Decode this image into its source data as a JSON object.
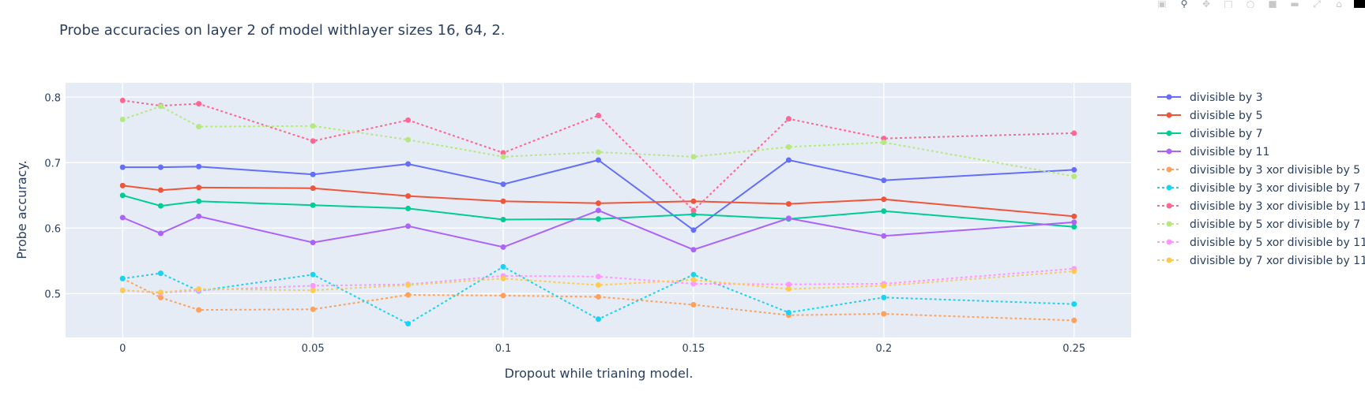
{
  "modebar": {
    "buttons": [
      {
        "icon": "camera-icon",
        "active": false
      },
      {
        "icon": "zoom-icon",
        "active": true
      },
      {
        "icon": "pan-icon",
        "active": false
      },
      {
        "icon": "box-select-icon",
        "active": false
      },
      {
        "icon": "lasso-select-icon",
        "active": false
      },
      {
        "icon": "zoom-in-icon",
        "active": false
      },
      {
        "icon": "zoom-out-icon",
        "active": false
      },
      {
        "icon": "autoscale-icon",
        "active": false
      },
      {
        "icon": "reset-axes-icon",
        "active": false
      },
      {
        "icon": "plotly-logo-icon",
        "active": false
      }
    ]
  },
  "chart_data": {
    "type": "line",
    "title": "Probe accuracies on layer 2 of model withlayer sizes 16, 64, 2.",
    "xlabel": "Dropout while trianing model.",
    "ylabel": "Probe accuracy.",
    "x": [
      0,
      0.01,
      0.02,
      0.05,
      0.075,
      0.1,
      0.125,
      0.15,
      0.175,
      0.2,
      0.25
    ],
    "xlim": [
      -0.015,
      0.265
    ],
    "ylim": [
      0.433,
      0.822
    ],
    "xticks": [
      {
        "v": 0,
        "label": "0"
      },
      {
        "v": 0.05,
        "label": "0.05"
      },
      {
        "v": 0.1,
        "label": "0.1"
      },
      {
        "v": 0.15,
        "label": "0.15"
      },
      {
        "v": 0.2,
        "label": "0.2"
      },
      {
        "v": 0.25,
        "label": "0.25"
      }
    ],
    "yticks": [
      {
        "v": 0.5,
        "label": "0.5"
      },
      {
        "v": 0.6,
        "label": "0.6"
      },
      {
        "v": 0.7,
        "label": "0.7"
      },
      {
        "v": 0.8,
        "label": "0.8"
      }
    ],
    "grid": true,
    "legend_position": "right",
    "series": [
      {
        "name": "divisible by 3",
        "color": "#636efa",
        "dash": "solid",
        "values": [
          0.693,
          0.693,
          0.694,
          0.682,
          0.698,
          0.667,
          0.704,
          0.597,
          0.704,
          0.673,
          0.689
        ]
      },
      {
        "name": "divisible by 5",
        "color": "#ef553b",
        "dash": "solid",
        "values": [
          0.665,
          0.658,
          0.662,
          0.661,
          0.649,
          0.641,
          0.638,
          0.641,
          0.637,
          0.644,
          0.618
        ]
      },
      {
        "name": "divisible by 7",
        "color": "#00cc96",
        "dash": "solid",
        "values": [
          0.65,
          0.634,
          0.641,
          0.635,
          0.63,
          0.613,
          0.614,
          0.621,
          0.614,
          0.626,
          0.602
        ]
      },
      {
        "name": "divisible by 11",
        "color": "#ab63fa",
        "dash": "solid",
        "values": [
          0.616,
          0.592,
          0.618,
          0.578,
          0.603,
          0.571,
          0.627,
          0.567,
          0.615,
          0.588,
          0.609
        ]
      },
      {
        "name": "divisible by 3 xor divisible by 5",
        "color": "#ffa15a",
        "dash": "dot",
        "values": [
          0.523,
          0.494,
          0.475,
          0.476,
          0.498,
          0.497,
          0.495,
          0.483,
          0.467,
          0.469,
          0.459
        ]
      },
      {
        "name": "divisible by 3 xor divisible by 7",
        "color": "#19d3f3",
        "dash": "dot",
        "values": [
          0.523,
          0.531,
          0.504,
          0.529,
          0.454,
          0.541,
          0.461,
          0.529,
          0.471,
          0.494,
          0.484
        ]
      },
      {
        "name": "divisible by 3 xor divisible by 11",
        "color": "#ff6692",
        "dash": "dot",
        "values": [
          0.795,
          0.787,
          0.79,
          0.733,
          0.765,
          0.715,
          0.772,
          0.627,
          0.767,
          0.737,
          0.745
        ]
      },
      {
        "name": "divisible by 5 xor divisible by 7",
        "color": "#b6e880",
        "dash": "dot",
        "values": [
          0.766,
          0.786,
          0.755,
          0.756,
          0.735,
          0.709,
          0.716,
          0.709,
          0.724,
          0.731,
          0.679
        ]
      },
      {
        "name": "divisible by 5 xor divisible by 11",
        "color": "#ff97ff",
        "dash": "dot",
        "values": [
          0.505,
          0.501,
          0.505,
          0.512,
          0.514,
          0.527,
          0.526,
          0.515,
          0.514,
          0.515,
          0.538
        ]
      },
      {
        "name": "divisible by 7 xor divisible by 11",
        "color": "#fecb52",
        "dash": "dot",
        "values": [
          0.505,
          0.502,
          0.507,
          0.505,
          0.513,
          0.523,
          0.513,
          0.521,
          0.507,
          0.512,
          0.534
        ]
      }
    ]
  }
}
